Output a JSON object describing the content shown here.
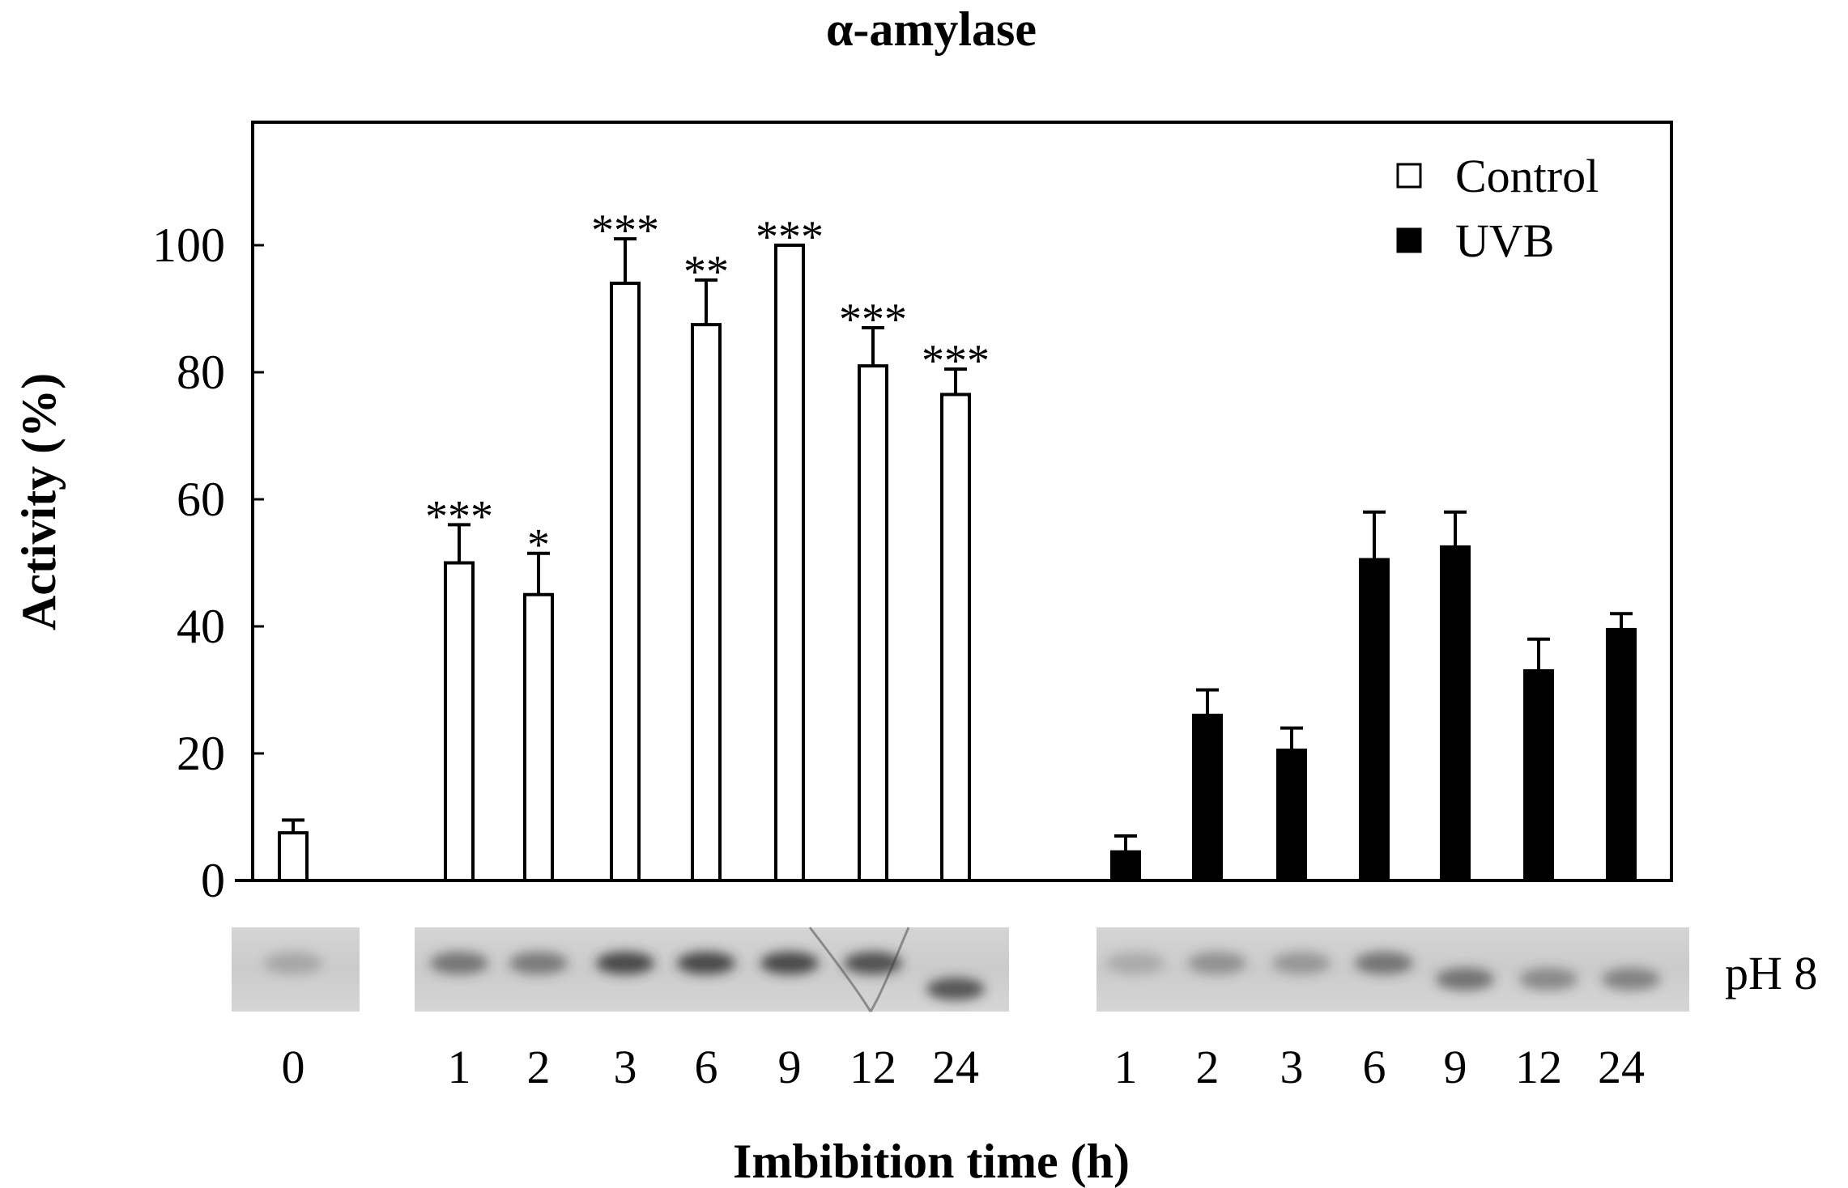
{
  "chart_data": {
    "type": "bar",
    "title": "α-amylase",
    "ylabel": "Activity (%)",
    "xlabel": "Imbibition time (h)",
    "ylim": [
      0,
      120
    ],
    "yticks": [
      0,
      20,
      40,
      60,
      80,
      100
    ],
    "grid": false,
    "legend_position": "top-right",
    "colors": {
      "Control": "#ffffff",
      "UVB": "#000000",
      "stroke": "#000000"
    },
    "series": [
      {
        "name": "Control",
        "categories": [
          "0",
          "1",
          "2",
          "3",
          "6",
          "9",
          "12",
          "24"
        ],
        "values": [
          7.5,
          50,
          45,
          94,
          87.5,
          100,
          81,
          76.5
        ],
        "errors": [
          2,
          6,
          6.5,
          7,
          7,
          0,
          6,
          4
        ],
        "significance": [
          "",
          "***",
          "*",
          "***",
          "**",
          "***",
          "***",
          "***"
        ]
      },
      {
        "name": "UVB",
        "categories": [
          "1",
          "2",
          "3",
          "6",
          "9",
          "12",
          "24"
        ],
        "values": [
          4.5,
          26,
          20.5,
          50.5,
          52.5,
          33,
          39.5
        ],
        "errors": [
          2.5,
          4,
          3.5,
          7.5,
          5.5,
          5,
          2.5
        ],
        "significance": [
          "",
          "",
          "",
          "",
          "",
          "",
          ""
        ]
      }
    ],
    "gel_label": "pH 8"
  }
}
